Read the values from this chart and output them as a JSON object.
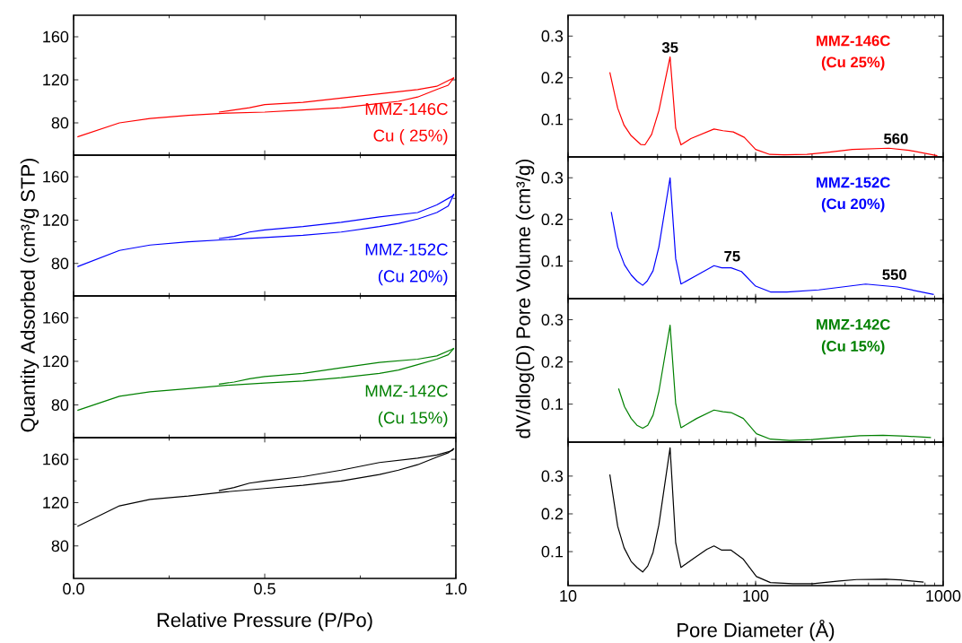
{
  "chart_data": [
    {
      "type": "line",
      "ylabel": "Quantity Adsorbed (cm³/g STP)",
      "xlim": [
        0,
        1
      ],
      "xticks": [
        0,
        0.5,
        1
      ],
      "ylim": [
        50,
        180
      ],
      "yticks": [
        80,
        120,
        160
      ],
      "tick_labels": "y",
      "annotations": [
        "Cu ( 25%)"
      ],
      "series": [
        {
          "name": "MMZ-146C",
          "color": "#ff0000",
          "x": [
            0.01,
            0.12,
            0.2,
            0.3,
            0.4,
            0.5,
            0.6,
            0.7,
            0.8,
            0.85,
            0.9,
            0.95,
            0.98,
            0.995
          ],
          "values": [
            67,
            80,
            84,
            87,
            89,
            90,
            92,
            94,
            98,
            100,
            104,
            111,
            115,
            122
          ]
        },
        {
          "color": "#ff0000",
          "x": [
            0.995,
            0.99,
            0.95,
            0.9,
            0.8,
            0.7,
            0.6,
            0.5,
            0.46,
            0.42,
            0.38
          ],
          "values": [
            122,
            121,
            114,
            111,
            107,
            103,
            99,
            97,
            94,
            92,
            90
          ]
        }
      ]
    },
    {
      "type": "line",
      "xlim": [
        0,
        1
      ],
      "xticks": [
        0,
        0.5,
        1
      ],
      "ylim": [
        50,
        180
      ],
      "yticks": [
        80,
        120,
        160
      ],
      "tick_labels": "y",
      "annotations": [
        "(Cu 20%)"
      ],
      "series": [
        {
          "name": "MMZ-152C",
          "color": "#0000ff",
          "x": [
            0.01,
            0.12,
            0.2,
            0.3,
            0.4,
            0.5,
            0.6,
            0.7,
            0.8,
            0.85,
            0.9,
            0.95,
            0.98,
            0.995
          ],
          "values": [
            77,
            92,
            97,
            100,
            102,
            104,
            106,
            109,
            114,
            117,
            121,
            127,
            133,
            144
          ]
        },
        {
          "color": "#0000ff",
          "x": [
            0.995,
            0.99,
            0.95,
            0.9,
            0.8,
            0.7,
            0.6,
            0.5,
            0.46,
            0.42,
            0.38
          ],
          "values": [
            144,
            142,
            134,
            127,
            123,
            118,
            114,
            111,
            109,
            105,
            103
          ]
        }
      ]
    },
    {
      "type": "line",
      "xlim": [
        0,
        1
      ],
      "xticks": [
        0,
        0.5,
        1
      ],
      "ylim": [
        50,
        180
      ],
      "yticks": [
        80,
        120,
        160
      ],
      "tick_labels": "y",
      "annotations": [
        "(Cu 15%)"
      ],
      "series": [
        {
          "name": "MMZ-142C",
          "color": "#008000",
          "x": [
            0.01,
            0.12,
            0.2,
            0.3,
            0.4,
            0.5,
            0.6,
            0.7,
            0.8,
            0.85,
            0.9,
            0.95,
            0.98,
            0.995
          ],
          "values": [
            75,
            88,
            92,
            95,
            98,
            100,
            102,
            105,
            109,
            112,
            117,
            122,
            126,
            132
          ]
        },
        {
          "color": "#008000",
          "x": [
            0.995,
            0.99,
            0.95,
            0.9,
            0.8,
            0.7,
            0.6,
            0.5,
            0.46,
            0.42,
            0.38
          ],
          "values": [
            132,
            131,
            125,
            122,
            119,
            114,
            109,
            106,
            104,
            101,
            99
          ]
        }
      ]
    },
    {
      "type": "line",
      "xlabel": "Relative Pressure (P/Po)",
      "xlim": [
        0,
        1
      ],
      "xticks": [
        {
          "value": 0,
          "label": "0.0"
        },
        {
          "value": 0.5,
          "label": "0.5"
        },
        {
          "value": 1,
          "label": "1.0"
        }
      ],
      "ylim": [
        50,
        180
      ],
      "yticks": [
        80,
        120,
        160
      ],
      "series": [
        {
          "color": "#000000",
          "x": [
            0.01,
            0.12,
            0.2,
            0.3,
            0.4,
            0.5,
            0.6,
            0.7,
            0.8,
            0.85,
            0.9,
            0.95,
            0.98,
            0.995
          ],
          "values": [
            98,
            117,
            123,
            126,
            130,
            133,
            136,
            140,
            146,
            150,
            155,
            162,
            166,
            170
          ]
        },
        {
          "color": "#000000",
          "x": [
            0.995,
            0.99,
            0.95,
            0.9,
            0.8,
            0.7,
            0.6,
            0.5,
            0.46,
            0.42,
            0.38
          ],
          "values": [
            170,
            168,
            164,
            161,
            157,
            150,
            144,
            140,
            138,
            134,
            131
          ]
        }
      ]
    },
    {
      "type": "line",
      "ylabel": "dV/dlog(D) Pore Volume (cm³/g)",
      "log": "x",
      "xlim": [
        10,
        1000
      ],
      "xticks": [
        10,
        100,
        1000
      ],
      "ylim": [
        0.01,
        0.35
      ],
      "yticks": [
        0.1,
        0.2,
        0.3
      ],
      "tick_labels": "y",
      "annotations": [
        "(Cu 25%)",
        {
          "text": "35",
          "x": 35,
          "y": 0.25
        },
        {
          "text": "560",
          "x": 560,
          "y": 0.031
        }
      ],
      "series": [
        {
          "name": "MMZ-146C",
          "color": "#ff0000",
          "x": [
            16.7,
            18.4,
            19.9,
            21.7,
            24.4,
            25.7,
            27.9,
            30.5,
            35,
            37.5,
            40,
            45.2,
            60,
            67,
            76,
            87,
            100,
            119,
            142,
            188,
            242,
            328,
            513,
            658,
            931
          ],
          "values": [
            0.213,
            0.127,
            0.086,
            0.061,
            0.04,
            0.039,
            0.064,
            0.121,
            0.25,
            0.079,
            0.039,
            0.054,
            0.077,
            0.073,
            0.07,
            0.057,
            0.028,
            0.016,
            0.015,
            0.016,
            0.021,
            0.028,
            0.031,
            0.026,
            0.013
          ]
        }
      ]
    },
    {
      "type": "line",
      "log": "x",
      "xlim": [
        10,
        1000
      ],
      "xticks": [
        10,
        100,
        1000
      ],
      "ylim": [
        0.01,
        0.35
      ],
      "yticks": [
        0.1,
        0.2,
        0.3
      ],
      "tick_labels": "y",
      "annotations": [
        "(Cu 20%)",
        {
          "text": "75",
          "x": 75,
          "y": 0.089
        },
        {
          "text": "550",
          "x": 550,
          "y": 0.045
        }
      ],
      "series": [
        {
          "name": "MMZ-152C",
          "color": "#0000ff",
          "x": [
            17,
            18.4,
            20,
            21.7,
            23.3,
            25,
            26.4,
            28.4,
            30.5,
            35,
            37.5,
            40,
            49,
            60,
            66,
            74,
            84,
            100,
            120,
            147,
            217,
            290,
            386,
            570,
            891
          ],
          "values": [
            0.218,
            0.134,
            0.091,
            0.067,
            0.052,
            0.042,
            0.052,
            0.077,
            0.134,
            0.3,
            0.106,
            0.045,
            0.067,
            0.089,
            0.084,
            0.084,
            0.075,
            0.04,
            0.026,
            0.026,
            0.031,
            0.038,
            0.045,
            0.038,
            0.02
          ]
        }
      ]
    },
    {
      "type": "line",
      "log": "x",
      "xlim": [
        10,
        1000
      ],
      "xticks": [
        10,
        100,
        1000
      ],
      "ylim": [
        0.01,
        0.35
      ],
      "yticks": [
        0.1,
        0.2,
        0.3
      ],
      "tick_labels": "y",
      "annotations": [
        "(Cu 15%)"
      ],
      "series": [
        {
          "name": "MMZ-142C",
          "color": "#008000",
          "x": [
            18.6,
            20,
            21.7,
            23.3,
            25,
            26.6,
            28.4,
            30.5,
            35,
            37.5,
            40,
            48.5,
            60,
            67,
            74,
            86,
            101,
            120,
            152,
            202,
            269,
            359,
            478,
            636,
            861
          ],
          "values": [
            0.137,
            0.094,
            0.066,
            0.05,
            0.043,
            0.05,
            0.074,
            0.13,
            0.287,
            0.101,
            0.044,
            0.066,
            0.086,
            0.082,
            0.08,
            0.066,
            0.03,
            0.017,
            0.014,
            0.016,
            0.021,
            0.025,
            0.026,
            0.024,
            0.021
          ]
        }
      ]
    },
    {
      "type": "line",
      "xlabel": "Pore Diameter (Å)",
      "log": "x",
      "xlim": [
        10,
        1000
      ],
      "xticks": [
        10,
        100,
        1000
      ],
      "ylim": [
        0.01,
        0.39
      ],
      "yticks": [
        0.1,
        0.2,
        0.3
      ],
      "series": [
        {
          "color": "#000000",
          "x": [
            16.7,
            18.4,
            19.9,
            21.7,
            23.3,
            25,
            26.6,
            28.4,
            30.5,
            35,
            37.5,
            40,
            46.7,
            55,
            60,
            66,
            74,
            86,
            101,
            120,
            158,
            202,
            279,
            346,
            494,
            591,
            787
          ],
          "values": [
            0.304,
            0.167,
            0.11,
            0.074,
            0.058,
            0.046,
            0.062,
            0.098,
            0.171,
            0.375,
            0.123,
            0.058,
            0.082,
            0.106,
            0.115,
            0.104,
            0.104,
            0.08,
            0.034,
            0.018,
            0.015,
            0.015,
            0.022,
            0.026,
            0.027,
            0.025,
            0.019
          ]
        }
      ]
    }
  ]
}
